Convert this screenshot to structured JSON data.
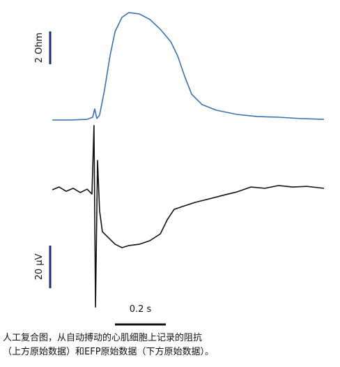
{
  "chart_data": [
    {
      "type": "line",
      "x": [
        0,
        0.068,
        0.137,
        0.159,
        0.167,
        0.175,
        0.186,
        0.205,
        0.227,
        0.247,
        0.274,
        0.301,
        0.342,
        0.384,
        0.425,
        0.466,
        0.493,
        0.521,
        0.548,
        0.589,
        0.644,
        0.726,
        0.808,
        0.89,
        0.973,
        1.068
      ],
      "series": [
        {
          "color": "#3b6fb2",
          "values": [
            0,
            0,
            0.04,
            0.17,
            0.68,
            0.09,
            0.3,
            1.79,
            3.91,
            5.4,
            6.26,
            6.55,
            6.47,
            6.13,
            5.53,
            4.77,
            3.91,
            2.64,
            1.57,
            0.94,
            0.6,
            0.34,
            0.21,
            0.17,
            0.09,
            0.04
          ]
        }
      ],
      "xlim": [
        0,
        1.068
      ],
      "ylim": [
        -0.5,
        7
      ],
      "y_scale_bar": {
        "value": 2,
        "label": "2 Ohm"
      }
    },
    {
      "type": "line",
      "x": [
        0,
        0.027,
        0.055,
        0.082,
        0.11,
        0.137,
        0.156,
        0.164,
        0.17,
        0.178,
        0.186,
        0.197,
        0.219,
        0.247,
        0.274,
        0.301,
        0.342,
        0.384,
        0.425,
        0.452,
        0.479,
        0.521,
        0.562,
        0.616,
        0.671,
        0.726,
        0.781,
        0.836,
        0.89,
        0.945,
        1.0,
        1.068
      ],
      "series": [
        {
          "color": "#111111",
          "values": [
            0,
            1.3,
            -0.7,
            0.7,
            -1.3,
            0.3,
            -2.0,
            30.2,
            -55.1,
            13.8,
            -9.8,
            -19.7,
            -22.3,
            -25.6,
            -27.2,
            -26.2,
            -25.6,
            -23.9,
            -20.7,
            -14.1,
            -9.2,
            -7.5,
            -5.9,
            -4.3,
            -2.6,
            -1.0,
            1.3,
            0.7,
            2.0,
            1.3,
            1.6,
            0.7
          ]
        }
      ],
      "xlim": [
        0,
        1.068
      ],
      "ylim": [
        -60,
        35
      ],
      "y_scale_bar": {
        "value": 20,
        "label": "20 µV"
      },
      "x_scale_bar": {
        "value": 0.2,
        "label": "0.2 s"
      }
    }
  ],
  "caption": [
    "人工复合图，从自动搏动的心肌细胞上记录的阻抗",
    "（上方原始数据）和EFP原始数据（下方原始数据）。"
  ]
}
